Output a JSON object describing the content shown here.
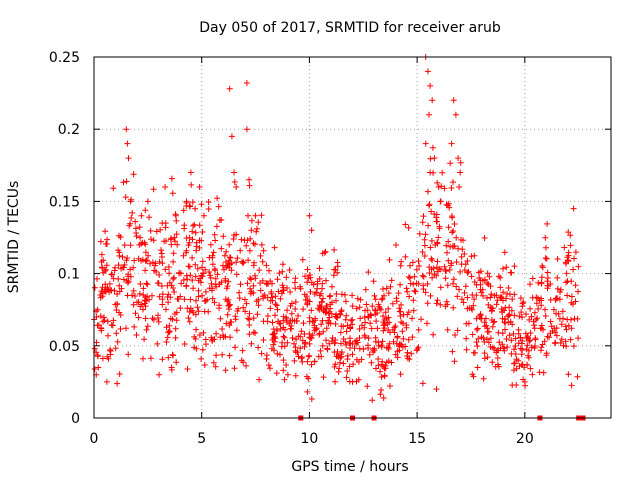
{
  "chart_data": {
    "type": "scatter",
    "title": "Day 050 of 2017, SRMTID for receiver arub",
    "xlabel": "GPS time / hours",
    "ylabel": "SRMTID / TECUs",
    "xlim": [
      0,
      24
    ],
    "ylim": [
      0,
      0.25
    ],
    "xticks": [
      0,
      5,
      10,
      15,
      20
    ],
    "xtick_labels": [
      "0",
      "5",
      "10",
      "15",
      "20"
    ],
    "yticks": [
      0,
      0.05,
      0.1,
      0.15,
      0.2,
      0.25
    ],
    "ytick_labels": [
      "0",
      "0.05",
      "0.1",
      "0.15",
      "0.2",
      "0.25"
    ],
    "grid": true,
    "marker": "+",
    "color": "#ff0000",
    "series": [
      {
        "name": "SRMTID",
        "trend": [
          [
            0.0,
            0.06
          ],
          [
            0.5,
            0.08
          ],
          [
            1.0,
            0.09
          ],
          [
            1.5,
            0.11
          ],
          [
            2.0,
            0.1
          ],
          [
            2.5,
            0.09
          ],
          [
            3.0,
            0.1
          ],
          [
            3.5,
            0.09
          ],
          [
            4.0,
            0.1
          ],
          [
            4.5,
            0.1
          ],
          [
            5.0,
            0.1
          ],
          [
            5.5,
            0.09
          ],
          [
            6.0,
            0.09
          ],
          [
            6.5,
            0.09
          ],
          [
            7.0,
            0.09
          ],
          [
            7.5,
            0.09
          ],
          [
            8.0,
            0.08
          ],
          [
            8.5,
            0.07
          ],
          [
            9.0,
            0.07
          ],
          [
            9.5,
            0.07
          ],
          [
            10.0,
            0.07
          ],
          [
            10.5,
            0.07
          ],
          [
            11.0,
            0.07
          ],
          [
            11.5,
            0.06
          ],
          [
            12.0,
            0.06
          ],
          [
            12.5,
            0.06
          ],
          [
            13.0,
            0.06
          ],
          [
            13.5,
            0.06
          ],
          [
            14.0,
            0.07
          ],
          [
            14.5,
            0.08
          ],
          [
            15.0,
            0.09
          ],
          [
            15.5,
            0.12
          ],
          [
            16.0,
            0.11
          ],
          [
            16.5,
            0.11
          ],
          [
            17.0,
            0.1
          ],
          [
            17.5,
            0.07
          ],
          [
            18.0,
            0.07
          ],
          [
            18.5,
            0.07
          ],
          [
            19.0,
            0.07
          ],
          [
            19.5,
            0.06
          ],
          [
            20.0,
            0.05
          ],
          [
            20.5,
            0.06
          ],
          [
            21.0,
            0.08
          ],
          [
            21.5,
            0.07
          ],
          [
            22.0,
            0.09
          ],
          [
            22.5,
            0.08
          ]
        ],
        "points": [
          [
            1.5,
            0.2
          ],
          [
            1.6,
            0.18
          ],
          [
            1.55,
            0.19
          ],
          [
            1.7,
            0.15
          ],
          [
            2.2,
            0.14
          ],
          [
            2.5,
            0.15
          ],
          [
            3.3,
            0.16
          ],
          [
            3.8,
            0.14
          ],
          [
            4.3,
            0.15
          ],
          [
            4.5,
            0.17
          ],
          [
            4.9,
            0.16
          ],
          [
            5.1,
            0.14
          ],
          [
            6.3,
            0.228
          ],
          [
            6.4,
            0.195
          ],
          [
            6.5,
            0.17
          ],
          [
            6.6,
            0.16
          ],
          [
            7.1,
            0.232
          ],
          [
            7.1,
            0.2
          ],
          [
            7.2,
            0.165
          ],
          [
            7.15,
            0.14
          ],
          [
            7.3,
            0.13
          ],
          [
            10.0,
            0.14
          ],
          [
            10.1,
            0.13
          ],
          [
            15.4,
            0.25
          ],
          [
            15.5,
            0.24
          ],
          [
            15.6,
            0.23
          ],
          [
            15.55,
            0.21
          ],
          [
            15.7,
            0.22
          ],
          [
            15.4,
            0.19
          ],
          [
            15.8,
            0.18
          ],
          [
            15.6,
            0.17
          ],
          [
            16.0,
            0.16
          ],
          [
            16.1,
            0.15
          ],
          [
            16.7,
            0.22
          ],
          [
            16.8,
            0.21
          ],
          [
            16.6,
            0.19
          ],
          [
            16.9,
            0.18
          ],
          [
            17.0,
            0.17
          ],
          [
            16.95,
            0.16
          ],
          [
            15.9,
            0.02
          ],
          [
            12.0,
            0.025
          ],
          [
            20.0,
            0.025
          ],
          [
            0.1,
            0.03
          ],
          [
            0.2,
            0.035
          ],
          [
            0.6,
            0.025
          ],
          [
            3.6,
            0.035
          ],
          [
            9.0,
            0.03
          ]
        ],
        "zero_points": [
          9.6,
          12.0,
          13.0,
          20.7,
          22.5,
          22.7
        ]
      }
    ]
  }
}
